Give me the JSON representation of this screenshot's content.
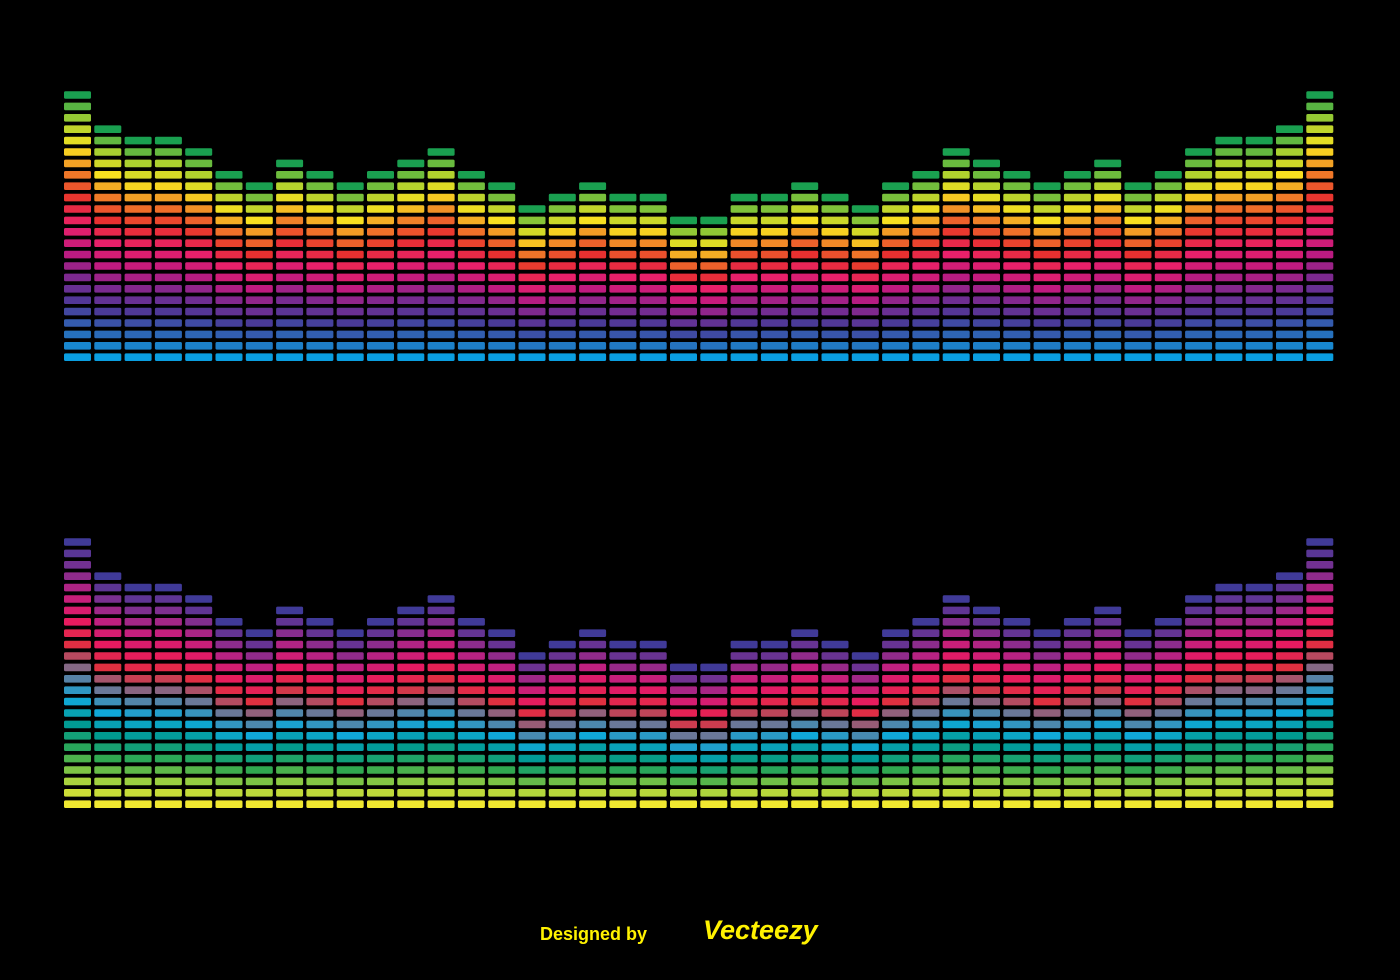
{
  "chart_data": [
    {
      "type": "bar",
      "values": [
        24,
        21,
        20,
        20,
        19,
        17,
        16,
        18,
        17,
        16,
        17,
        18,
        19,
        17,
        16,
        14,
        15,
        16,
        15,
        15,
        13,
        13,
        15,
        15,
        16,
        15,
        14,
        16,
        17,
        19,
        18,
        17,
        16,
        17,
        18,
        16,
        17,
        19,
        20,
        20,
        21,
        24
      ],
      "colors": [
        "#0a9ee0",
        "#2a6ab8",
        "#4a3a98",
        "#7a2a90",
        "#c01a80",
        "#e8206a",
        "#e83030",
        "#f07a28",
        "#f8e020",
        "#a8d030",
        "#1aa050"
      ]
    },
    {
      "type": "bar",
      "values": [
        24,
        21,
        20,
        20,
        19,
        17,
        16,
        18,
        17,
        16,
        17,
        18,
        19,
        17,
        16,
        14,
        15,
        16,
        15,
        15,
        13,
        13,
        15,
        15,
        16,
        15,
        14,
        16,
        17,
        19,
        18,
        17,
        16,
        17,
        18,
        16,
        17,
        19,
        20,
        20,
        21,
        24
      ],
      "colors": [
        "#f0e830",
        "#a0d040",
        "#30a850",
        "#009a90",
        "#10a8d8",
        "#6a7898",
        "#e03040",
        "#e81a60",
        "#c02080",
        "#7a3090",
        "#403a98"
      ]
    }
  ],
  "footer": {
    "prefix": "Designed by",
    "brand": "Vecteezy"
  }
}
